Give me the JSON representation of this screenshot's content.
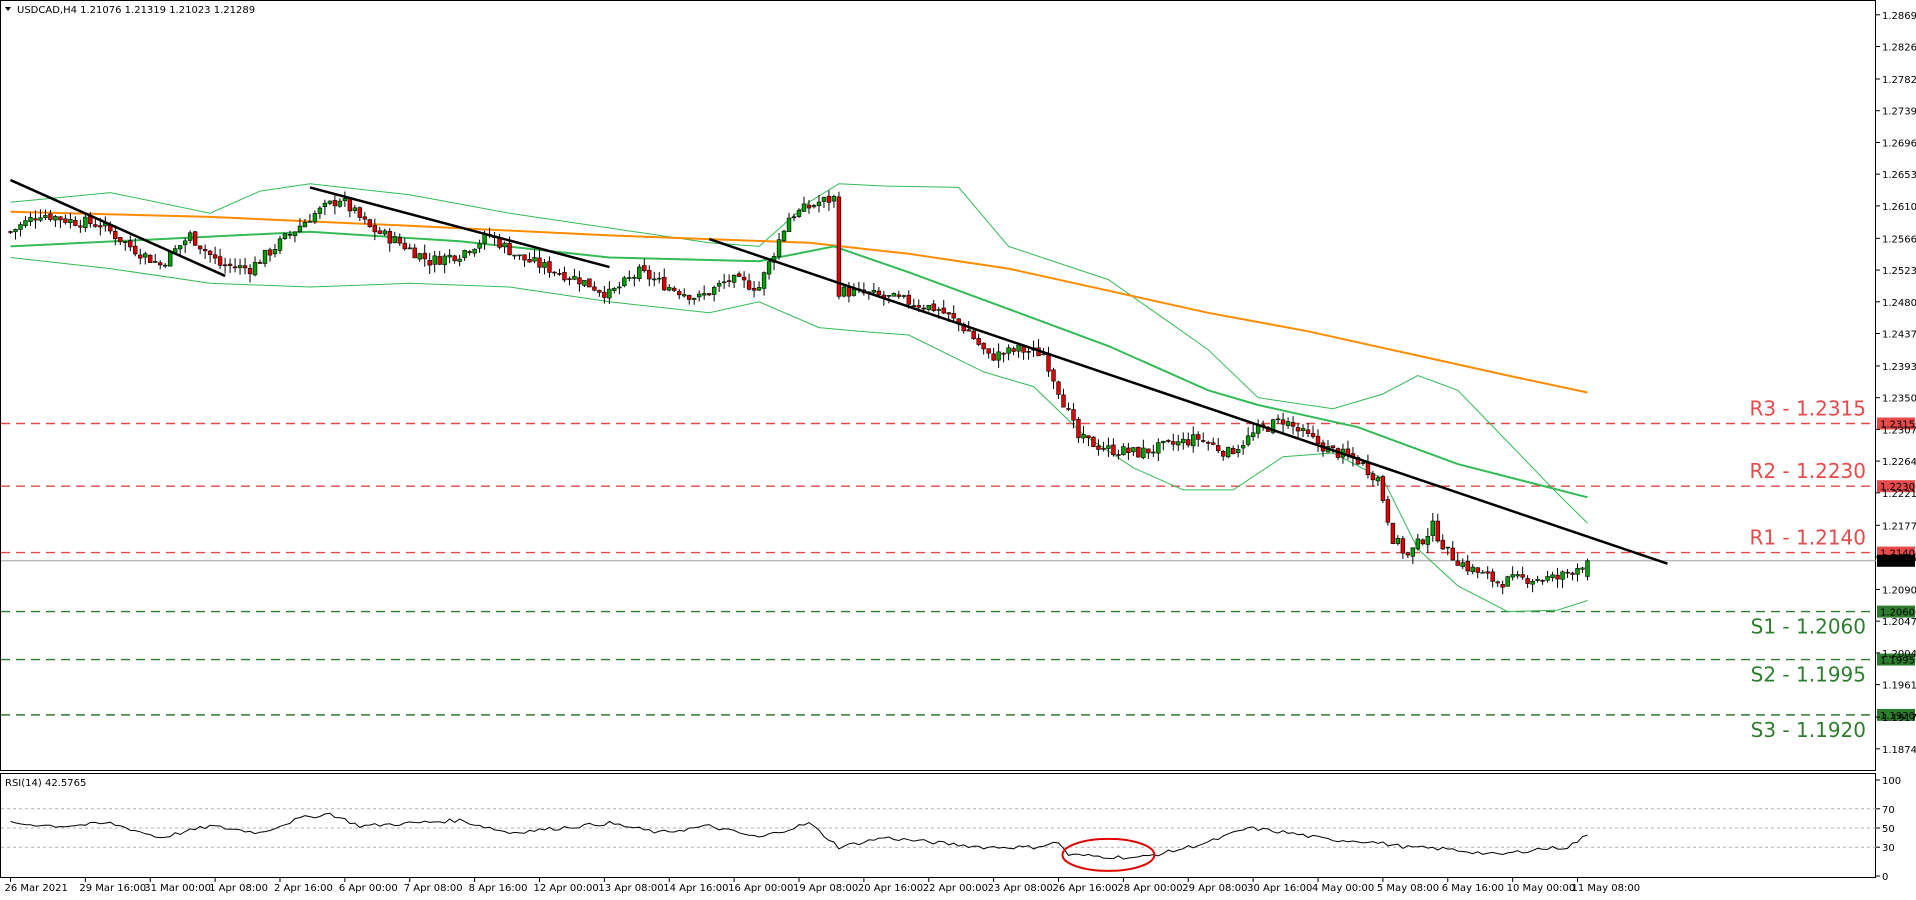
{
  "header": {
    "symbol_line": "USDCAD,H4  1.21076 1.21319 1.21023 1.21289"
  },
  "rsi_header": {
    "label": "RSI(14) 42.5765"
  },
  "colors": {
    "bull_candle": "#00a000",
    "bear_candle": "#e00000",
    "ma_long": "#ff8c00",
    "ma_mid": "#33bb55",
    "bands": "#33bb55",
    "trendline": "#000000",
    "resistance": "#e64a4a",
    "support": "#2e7d2e",
    "rsi_line": "#000000",
    "highlight_ellipse": "#e00000"
  },
  "chart_data": [
    {
      "type": "candlestick",
      "title": "USDCAD,H4",
      "ohlc_last": {
        "open": 1.21076,
        "high": 1.21319,
        "low": 1.21023,
        "close": 1.21289
      },
      "ylim": [
        1.1848,
        1.2885
      ],
      "y_ticks": [
        "1.28690",
        "1.28260",
        "1.27820",
        "1.27390",
        "1.26960",
        "1.26530",
        "1.26100",
        "1.25660",
        "1.25230",
        "1.24800",
        "1.24370",
        "1.23930",
        "1.23500",
        "1.23070",
        "1.22640",
        "1.22210",
        "1.21770",
        "1.21340",
        "1.20900",
        "1.20470",
        "1.20040",
        "1.19610",
        "1.19170",
        "1.18740"
      ],
      "x_ticks": [
        "26 Mar 2021",
        "29 Mar 16:00",
        "31 Mar 00:00",
        "1 Apr 08:00",
        "2 Apr 16:00",
        "6 Apr 00:00",
        "7 Apr 08:00",
        "8 Apr 16:00",
        "12 Apr 00:00",
        "13 Apr 08:00",
        "14 Apr 16:00",
        "16 Apr 00:00",
        "19 Apr 08:00",
        "20 Apr 16:00",
        "22 Apr 00:00",
        "23 Apr 08:00",
        "26 Apr 16:00",
        "28 Apr 00:00",
        "29 Apr 08:00",
        "30 Apr 16:00",
        "4 May 00:00",
        "5 May 08:00",
        "6 May 16:00",
        "10 May 00:00",
        "11 May 08:00"
      ],
      "price_anchors": [
        [
          0,
          1.2575
        ],
        [
          6,
          1.26
        ],
        [
          12,
          1.259
        ],
        [
          18,
          1.2585
        ],
        [
          24,
          1.2555
        ],
        [
          30,
          1.253
        ],
        [
          36,
          1.257
        ],
        [
          42,
          1.253
        ],
        [
          48,
          1.2525
        ],
        [
          54,
          1.256
        ],
        [
          60,
          1.2595
        ],
        [
          66,
          1.262
        ],
        [
          72,
          1.258
        ],
        [
          78,
          1.256
        ],
        [
          84,
          1.2535
        ],
        [
          90,
          1.2545
        ],
        [
          96,
          1.257
        ],
        [
          102,
          1.254
        ],
        [
          108,
          1.2525
        ],
        [
          114,
          1.251
        ],
        [
          120,
          1.249
        ],
        [
          126,
          1.252
        ],
        [
          132,
          1.25
        ],
        [
          138,
          1.2485
        ],
        [
          144,
          1.251
        ],
        [
          150,
          1.25
        ],
        [
          156,
          1.2595
        ],
        [
          162,
          1.2615
        ],
        [
          165,
          1.262
        ],
        [
          166,
          1.2495
        ],
        [
          172,
          1.249
        ],
        [
          180,
          1.248
        ],
        [
          186,
          1.247
        ],
        [
          192,
          1.244
        ],
        [
          196,
          1.2405
        ],
        [
          202,
          1.2415
        ],
        [
          207,
          1.241
        ],
        [
          211,
          1.2345
        ],
        [
          214,
          1.2295
        ],
        [
          220,
          1.228
        ],
        [
          226,
          1.2275
        ],
        [
          232,
          1.2285
        ],
        [
          238,
          1.2295
        ],
        [
          244,
          1.2275
        ],
        [
          250,
          1.2305
        ],
        [
          255,
          1.232
        ],
        [
          258,
          1.2305
        ],
        [
          264,
          1.228
        ],
        [
          270,
          1.2265
        ],
        [
          274,
          1.224
        ],
        [
          277,
          1.216
        ],
        [
          280,
          1.2135
        ],
        [
          285,
          1.2175
        ],
        [
          288,
          1.214
        ],
        [
          292,
          1.212
        ],
        [
          298,
          1.21
        ],
        [
          304,
          1.2105
        ],
        [
          310,
          1.2105
        ],
        [
          316,
          1.2129
        ]
      ],
      "last_close": 1.21289,
      "ma_long": [
        [
          0,
          1.2602
        ],
        [
          40,
          1.2595
        ],
        [
          80,
          1.2583
        ],
        [
          120,
          1.257
        ],
        [
          160,
          1.256
        ],
        [
          180,
          1.2545
        ],
        [
          200,
          1.2525
        ],
        [
          220,
          1.2495
        ],
        [
          240,
          1.2465
        ],
        [
          260,
          1.244
        ],
        [
          280,
          1.241
        ],
        [
          300,
          1.238
        ],
        [
          316,
          1.2357
        ]
      ],
      "ma_mid": [
        [
          0,
          1.2555
        ],
        [
          30,
          1.2565
        ],
        [
          60,
          1.2575
        ],
        [
          90,
          1.2562
        ],
        [
          120,
          1.254
        ],
        [
          150,
          1.2535
        ],
        [
          165,
          1.2555
        ],
        [
          180,
          1.252
        ],
        [
          200,
          1.247
        ],
        [
          220,
          1.242
        ],
        [
          240,
          1.236
        ],
        [
          250,
          1.234
        ],
        [
          270,
          1.231
        ],
        [
          290,
          1.226
        ],
        [
          316,
          1.2215
        ]
      ],
      "bands": {
        "upper": [
          [
            0,
            1.2615
          ],
          [
            20,
            1.2628
          ],
          [
            40,
            1.26
          ],
          [
            50,
            1.263
          ],
          [
            60,
            1.264
          ],
          [
            80,
            1.2625
          ],
          [
            100,
            1.26
          ],
          [
            120,
            1.258
          ],
          [
            140,
            1.256
          ],
          [
            150,
            1.2555
          ],
          [
            160,
            1.2615
          ],
          [
            166,
            1.264
          ],
          [
            175,
            1.2637
          ],
          [
            190,
            1.2635
          ],
          [
            200,
            1.2555
          ],
          [
            220,
            1.251
          ],
          [
            240,
            1.2415
          ],
          [
            250,
            1.235
          ],
          [
            265,
            1.2335
          ],
          [
            275,
            1.2355
          ],
          [
            282,
            1.238
          ],
          [
            290,
            1.236
          ],
          [
            300,
            1.229
          ],
          [
            310,
            1.222
          ],
          [
            316,
            1.218
          ]
        ],
        "lower": [
          [
            0,
            1.254
          ],
          [
            20,
            1.2525
          ],
          [
            40,
            1.2505
          ],
          [
            60,
            1.25
          ],
          [
            80,
            1.2505
          ],
          [
            100,
            1.25
          ],
          [
            120,
            1.248
          ],
          [
            140,
            1.2465
          ],
          [
            150,
            1.248
          ],
          [
            162,
            1.2445
          ],
          [
            170,
            1.244
          ],
          [
            180,
            1.2435
          ],
          [
            195,
            1.2385
          ],
          [
            205,
            1.2365
          ],
          [
            215,
            1.23
          ],
          [
            225,
            1.2255
          ],
          [
            235,
            1.2225
          ],
          [
            245,
            1.2225
          ],
          [
            255,
            1.227
          ],
          [
            265,
            1.2275
          ],
          [
            275,
            1.224
          ],
          [
            282,
            1.2145
          ],
          [
            290,
            1.2095
          ],
          [
            300,
            1.206
          ],
          [
            310,
            1.2062
          ],
          [
            316,
            1.2075
          ]
        ]
      },
      "trendlines": [
        [
          [
            0,
            1.2645
          ],
          [
            27,
            1.2515
          ]
        ],
        [
          [
            60,
            1.2635
          ],
          [
            104,
            1.2527
          ]
        ],
        [
          [
            140,
            1.2565
          ],
          [
            316,
            1.2125
          ]
        ]
      ],
      "levels": [
        {
          "label": "R3 - 1.2315",
          "tag": "1.23150",
          "value": 1.2315,
          "kind": "resistance"
        },
        {
          "label": "R2 - 1.2230",
          "tag": "1.22300",
          "value": 1.223,
          "kind": "resistance"
        },
        {
          "label": "R1 - 1.2140",
          "tag": "1.21400",
          "value": 1.214,
          "kind": "resistance"
        },
        {
          "label": "S1 - 1.2060",
          "tag": "1.20600",
          "value": 1.206,
          "kind": "support"
        },
        {
          "label": "S2 - 1.1995",
          "tag": "1.19950",
          "value": 1.1995,
          "kind": "support"
        },
        {
          "label": "S3 - 1.1920",
          "tag": "1.19200",
          "value": 1.192,
          "kind": "support"
        }
      ],
      "current_price_tag": "1.21289",
      "grid": false
    },
    {
      "type": "line",
      "title": "RSI(14) 42.5765",
      "ylim": [
        0,
        100
      ],
      "y_ticks": [
        100,
        70,
        50,
        30,
        0
      ],
      "hlines": [
        70,
        50,
        30
      ],
      "rsi_anchors": [
        [
          0,
          55
        ],
        [
          10,
          52
        ],
        [
          20,
          55
        ],
        [
          30,
          40
        ],
        [
          40,
          52
        ],
        [
          50,
          45
        ],
        [
          58,
          60
        ],
        [
          64,
          65
        ],
        [
          70,
          52
        ],
        [
          80,
          55
        ],
        [
          90,
          58
        ],
        [
          100,
          45
        ],
        [
          110,
          50
        ],
        [
          120,
          55
        ],
        [
          130,
          45
        ],
        [
          140,
          52
        ],
        [
          150,
          40
        ],
        [
          160,
          55
        ],
        [
          166,
          30
        ],
        [
          175,
          40
        ],
        [
          185,
          35
        ],
        [
          195,
          30
        ],
        [
          205,
          30
        ],
        [
          210,
          35
        ],
        [
          212,
          22
        ],
        [
          220,
          20
        ],
        [
          226,
          19
        ],
        [
          232,
          25
        ],
        [
          240,
          35
        ],
        [
          248,
          50
        ],
        [
          256,
          45
        ],
        [
          264,
          38
        ],
        [
          272,
          36
        ],
        [
          280,
          30
        ],
        [
          288,
          28
        ],
        [
          298,
          22
        ],
        [
          306,
          28
        ],
        [
          312,
          30
        ],
        [
          316,
          42.5765
        ]
      ],
      "highlight": {
        "from": 212,
        "to": 228,
        "shape": "ellipse"
      }
    }
  ]
}
